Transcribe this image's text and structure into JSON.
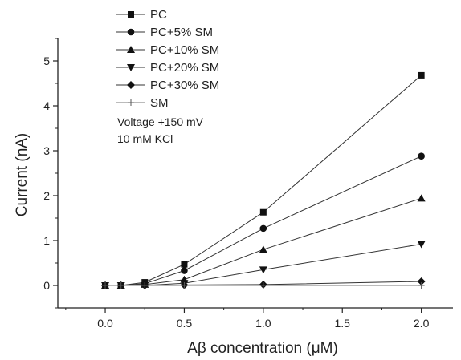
{
  "chart_data": {
    "type": "line",
    "xlabel": "Aβ concentration (μM)",
    "ylabel": "Current (nA)",
    "xlim": [
      -0.3,
      2.2
    ],
    "ylim": [
      -0.5,
      5.5
    ],
    "xticks": [
      0.0,
      0.5,
      1.0,
      1.5,
      2.0
    ],
    "xtick_labels": [
      "0.0",
      "0.5",
      "1.0",
      "1.5",
      "2.0"
    ],
    "yticks": [
      0,
      1,
      2,
      3,
      4,
      5
    ],
    "ytick_labels": [
      "0",
      "1",
      "2",
      "3",
      "4",
      "5"
    ],
    "grid": false,
    "legend_position": "top-left",
    "annotations": [
      "Voltage +150 mV",
      "10 mM KCl"
    ],
    "series": [
      {
        "name": "PC",
        "marker": "square",
        "x": [
          0.0,
          0.1,
          0.25,
          0.5,
          1.0,
          2.0
        ],
        "y": [
          0.0,
          0.0,
          0.07,
          0.47,
          1.63,
          4.68
        ]
      },
      {
        "name": "PC+5% SM",
        "marker": "circle",
        "x": [
          0.0,
          0.1,
          0.25,
          0.5,
          1.0,
          2.0
        ],
        "y": [
          0.0,
          0.0,
          0.04,
          0.33,
          1.27,
          2.88
        ]
      },
      {
        "name": "PC+10% SM",
        "marker": "triangle-up",
        "x": [
          0.0,
          0.1,
          0.25,
          0.5,
          1.0,
          2.0
        ],
        "y": [
          0.0,
          0.0,
          0.02,
          0.13,
          0.8,
          1.94
        ]
      },
      {
        "name": "PC+20% SM",
        "marker": "triangle-down",
        "x": [
          0.0,
          0.1,
          0.25,
          0.5,
          1.0,
          2.0
        ],
        "y": [
          0.0,
          0.0,
          0.0,
          0.05,
          0.35,
          0.92
        ]
      },
      {
        "name": "PC+30% SM",
        "marker": "diamond",
        "x": [
          0.0,
          0.1,
          0.25,
          0.5,
          1.0,
          2.0
        ],
        "y": [
          0.0,
          0.0,
          0.0,
          0.01,
          0.02,
          0.09
        ]
      },
      {
        "name": "SM",
        "marker": "plus",
        "x": [
          0.0,
          0.1,
          0.25,
          0.5,
          1.0,
          2.0
        ],
        "y": [
          0.0,
          0.0,
          0.0,
          0.0,
          0.0,
          0.0
        ]
      }
    ]
  }
}
